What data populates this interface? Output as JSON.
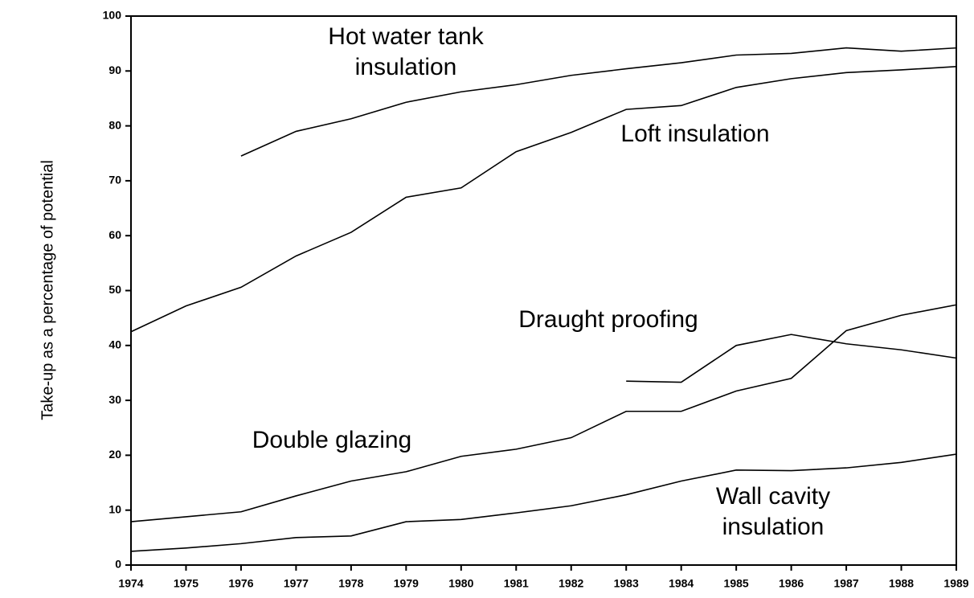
{
  "chart_data": {
    "type": "line",
    "y_label": "Take-up as a percentage of potential",
    "x": [
      1974,
      1975,
      1976,
      1977,
      1978,
      1979,
      1980,
      1981,
      1982,
      1983,
      1984,
      1985,
      1986,
      1987,
      1988,
      1989
    ],
    "series": [
      {
        "name": "Hot water tank insulation",
        "color": "#000000",
        "values": [
          null,
          null,
          74.5,
          79,
          81.3,
          84.3,
          86.2,
          87.5,
          89.2,
          90.4,
          91.5,
          92.9,
          93.2,
          94.2,
          93.6,
          94.2
        ]
      },
      {
        "name": "Loft insulation",
        "color": "#000000",
        "values": [
          42.5,
          47.2,
          50.6,
          56.3,
          60.6,
          67,
          68.7,
          75.3,
          78.8,
          83,
          83.7,
          87,
          88.6,
          89.7,
          90.2,
          90.8
        ]
      },
      {
        "name": "Draught proofing",
        "color": "#000000",
        "values": [
          null,
          null,
          null,
          null,
          null,
          null,
          null,
          null,
          null,
          33.5,
          33.3,
          40,
          42,
          40.3,
          39.2,
          37.7
        ]
      },
      {
        "name": "Double glazing",
        "color": "#000000",
        "values": [
          7.9,
          8.8,
          9.7,
          12.6,
          15.3,
          17,
          19.8,
          21.1,
          23.2,
          28,
          28,
          31.7,
          34,
          42.7,
          45.5,
          47.4
        ]
      },
      {
        "name": "Wall cavity insulation",
        "color": "#000000",
        "values": [
          2.5,
          3.1,
          3.9,
          5,
          5.3,
          7.9,
          8.3,
          9.5,
          10.8,
          12.8,
          15.3,
          17.3,
          17.2,
          17.7,
          18.7,
          20.2
        ]
      }
    ],
    "xlim": [
      1974,
      1989
    ],
    "xticks": [
      1974,
      1975,
      1976,
      1977,
      1978,
      1979,
      1980,
      1981,
      1982,
      1983,
      1984,
      1985,
      1986,
      1987,
      1988,
      1989
    ],
    "ylim": [
      0,
      100
    ],
    "yticks": [
      0,
      10,
      20,
      30,
      40,
      50,
      60,
      70,
      80,
      90,
      100
    ],
    "grid": false
  }
}
